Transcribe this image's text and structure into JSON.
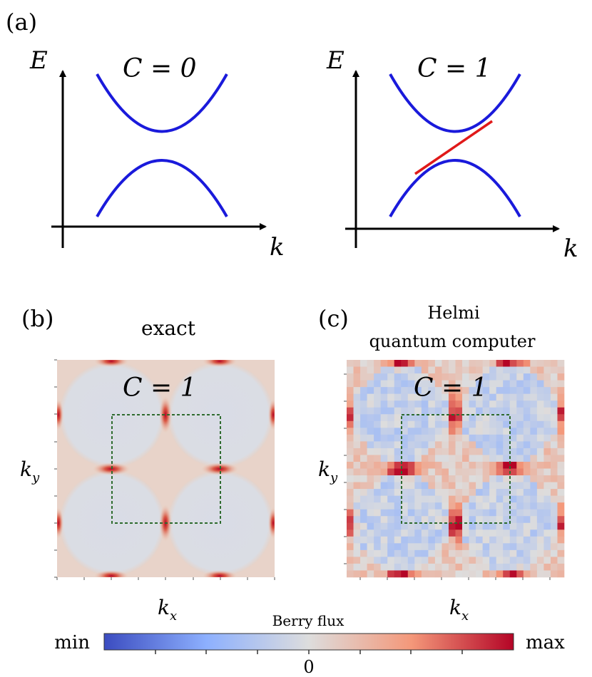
{
  "panels": {
    "a": {
      "label": "(a)",
      "left": {
        "axis_y": "E",
        "axis_x": "k",
        "chern": "C = 0"
      },
      "right": {
        "axis_y": "E",
        "axis_x": "k",
        "chern": "C = 1"
      }
    },
    "b": {
      "label": "(b)",
      "title": "exact",
      "chern": "C = 1",
      "xlabel": "k",
      "xlabel_sub": "x",
      "ylabel": "k",
      "ylabel_sub": "y"
    },
    "c": {
      "label": "(c)",
      "title_line1": "Helmi",
      "title_line2": "quantum computer",
      "chern": "C = 1",
      "xlabel": "k",
      "xlabel_sub": "x",
      "ylabel": "k",
      "ylabel_sub": "y"
    }
  },
  "colorbar": {
    "title": "Berry flux",
    "min_label": "min",
    "max_label": "max",
    "zero_label": "0"
  },
  "colors": {
    "band": "#1a1adb",
    "edge_state": "#e01919",
    "dashed_box": "#2e6b2e"
  }
}
